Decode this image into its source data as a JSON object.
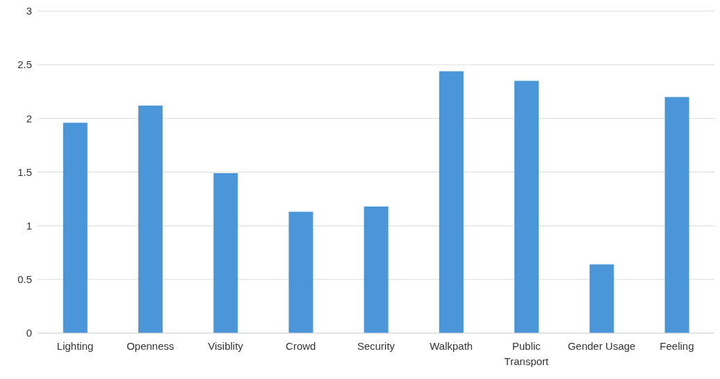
{
  "chart_data": {
    "type": "bar",
    "categories": [
      "Lighting",
      "Openness",
      "Visiblity",
      "Crowd",
      "Security",
      "Walkpath",
      "Public Transport",
      "Gender Usage",
      "Feeling"
    ],
    "values": [
      1.96,
      2.12,
      1.49,
      1.13,
      1.18,
      2.44,
      2.35,
      0.64,
      2.2
    ],
    "color": "#4a96d8",
    "ylim": [
      0,
      3
    ],
    "yticks": [
      0,
      0.5,
      1,
      1.5,
      2,
      2.5,
      3
    ],
    "grid": "y",
    "legend": false
  }
}
